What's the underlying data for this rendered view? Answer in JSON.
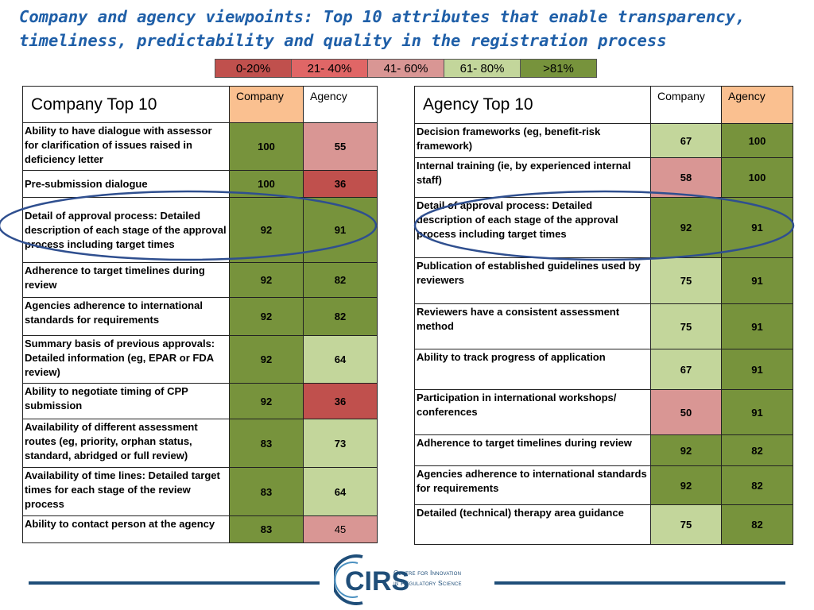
{
  "title": "Company and agency viewpoints: Top 10 attributes that enable transparency, timeliness, predictability and quality in the registration process",
  "legend": [
    {
      "label": "0-20%",
      "color": "#c0504d"
    },
    {
      "label": "21- 40%",
      "color": "#e06666"
    },
    {
      "label": "41- 60%",
      "color": "#d99694"
    },
    {
      "label": "61- 80%",
      "color": "#c3d69b"
    },
    {
      "label": ">81%",
      "color": "#77933c"
    }
  ],
  "company_table": {
    "heading": "Company Top 10",
    "col_company": "Company",
    "col_agency": "Agency",
    "rows": [
      {
        "attribute": "Ability to have dialogue with assessor for clarification of issues raised in deficiency letter",
        "company": "100",
        "agency": "55"
      },
      {
        "attribute": "Pre-submission dialogue",
        "company": "100",
        "agency": "36"
      },
      {
        "attribute": "Detail of approval process: Detailed description of each stage of the approval process including target times",
        "company": "92",
        "agency": "91"
      },
      {
        "attribute": "Adherence to target timelines during review",
        "company": "92",
        "agency": "82"
      },
      {
        "attribute": "Agencies adherence to international standards for requirements",
        "company": "92",
        "agency": "82"
      },
      {
        "attribute": "Summary basis of previous approvals: Detailed information (eg, EPAR or FDA review)",
        "company": "92",
        "agency": "64"
      },
      {
        "attribute": "Ability to negotiate timing of CPP submission",
        "company": "92",
        "agency": "36"
      },
      {
        "attribute": "Availability of different assessment routes (eg, priority, orphan status, standard, abridged or full review)",
        "company": "83",
        "agency": "73"
      },
      {
        "attribute": "Availability of time lines: Detailed target times for each stage of the review process",
        "company": "83",
        "agency": "64"
      },
      {
        "attribute": "Ability to contact person at the agency",
        "company": "83",
        "agency": "45"
      }
    ]
  },
  "agency_table": {
    "heading": "Agency Top 10",
    "col_company": "Company",
    "col_agency": "Agency",
    "rows": [
      {
        "attribute": "Decision frameworks  (eg, benefit-risk framework)",
        "company": "67",
        "agency": "100"
      },
      {
        "attribute": "Internal training (ie, by experienced internal staff)",
        "company": "58",
        "agency": "100"
      },
      {
        "attribute": "Detail of approval process: Detailed description of each stage of the approval process including target times",
        "company": "92",
        "agency": "91"
      },
      {
        "attribute": "Publication of established guidelines used by reviewers",
        "company": "75",
        "agency": "91"
      },
      {
        "attribute": "Reviewers have a  consistent assessment method",
        "company": "75",
        "agency": "91"
      },
      {
        "attribute": "Ability to track progress of application",
        "company": "67",
        "agency": "91"
      },
      {
        "attribute": "Participation in international workshops/ conferences",
        "company": "50",
        "agency": "91"
      },
      {
        "attribute": "Adherence to target timelines during review",
        "company": "92",
        "agency": "82"
      },
      {
        "attribute": "Agencies adherence to international standards for requirements",
        "company": "92",
        "agency": "82"
      },
      {
        "attribute": "Detailed (technical) therapy area guidance",
        "company": "75",
        "agency": "82"
      }
    ]
  },
  "logo": {
    "name": "CIRS",
    "tagline_1": "Centre for Innovation",
    "tagline_2": "in Regulatory Science"
  }
}
